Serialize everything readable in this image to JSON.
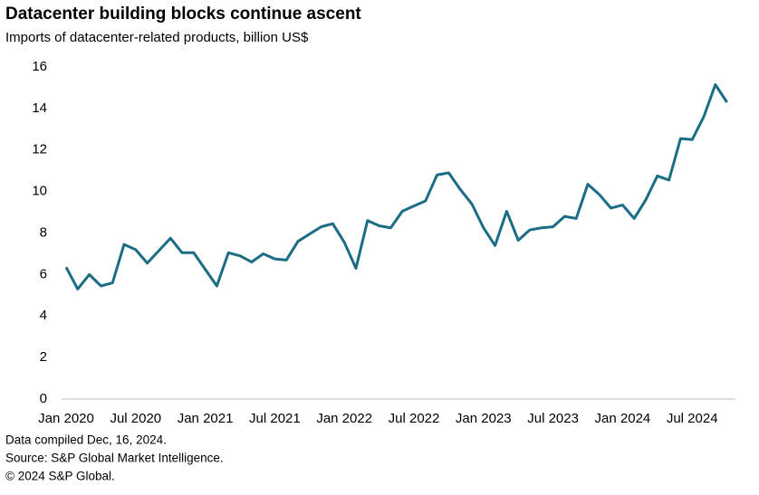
{
  "chart_data": {
    "type": "line",
    "title": "Datacenter building blocks continue ascent",
    "subtitle": "Imports of datacenter-related products, billion US$",
    "categories": [
      "Jan 2020",
      null,
      null,
      null,
      null,
      null,
      "Jul 2020",
      null,
      null,
      null,
      null,
      null,
      "Jan 2021",
      null,
      null,
      null,
      null,
      null,
      "Jul 2021",
      null,
      null,
      null,
      null,
      null,
      "Jan 2022",
      null,
      null,
      null,
      null,
      null,
      "Jul 2022",
      null,
      null,
      null,
      null,
      null,
      "Jan 2023",
      null,
      null,
      null,
      null,
      null,
      "Jul 2023",
      null,
      null,
      null,
      null,
      null,
      "Jan 2024",
      null,
      null,
      null,
      null,
      null,
      "Jul 2024",
      null,
      null,
      null
    ],
    "series": [
      {
        "name": "Imports",
        "color": "#1b6d85",
        "values": [
          6.35,
          5.3,
          6.0,
          5.45,
          5.6,
          7.45,
          7.2,
          6.55,
          7.15,
          7.75,
          7.05,
          7.05,
          6.25,
          5.45,
          7.05,
          6.9,
          6.6,
          7.0,
          6.75,
          6.7,
          7.6,
          7.95,
          8.3,
          8.45,
          7.55,
          6.3,
          8.6,
          8.35,
          8.25,
          9.05,
          9.3,
          9.55,
          10.8,
          10.9,
          10.1,
          9.4,
          8.25,
          7.4,
          9.05,
          7.65,
          8.15,
          8.25,
          8.3,
          8.8,
          8.7,
          10.35,
          9.85,
          9.2,
          9.35,
          8.7,
          9.6,
          10.75,
          10.55,
          12.55,
          12.5,
          13.6,
          15.15,
          14.3
        ]
      }
    ],
    "ylim": [
      0,
      16
    ],
    "yticks": [
      0,
      2,
      4,
      6,
      8,
      10,
      12,
      14,
      16
    ],
    "grid": false,
    "notes": [
      "Data compiled Dec, 16, 2024.",
      "Source: S&P Global Market Intelligence.",
      "© 2024 S&P Global."
    ]
  }
}
